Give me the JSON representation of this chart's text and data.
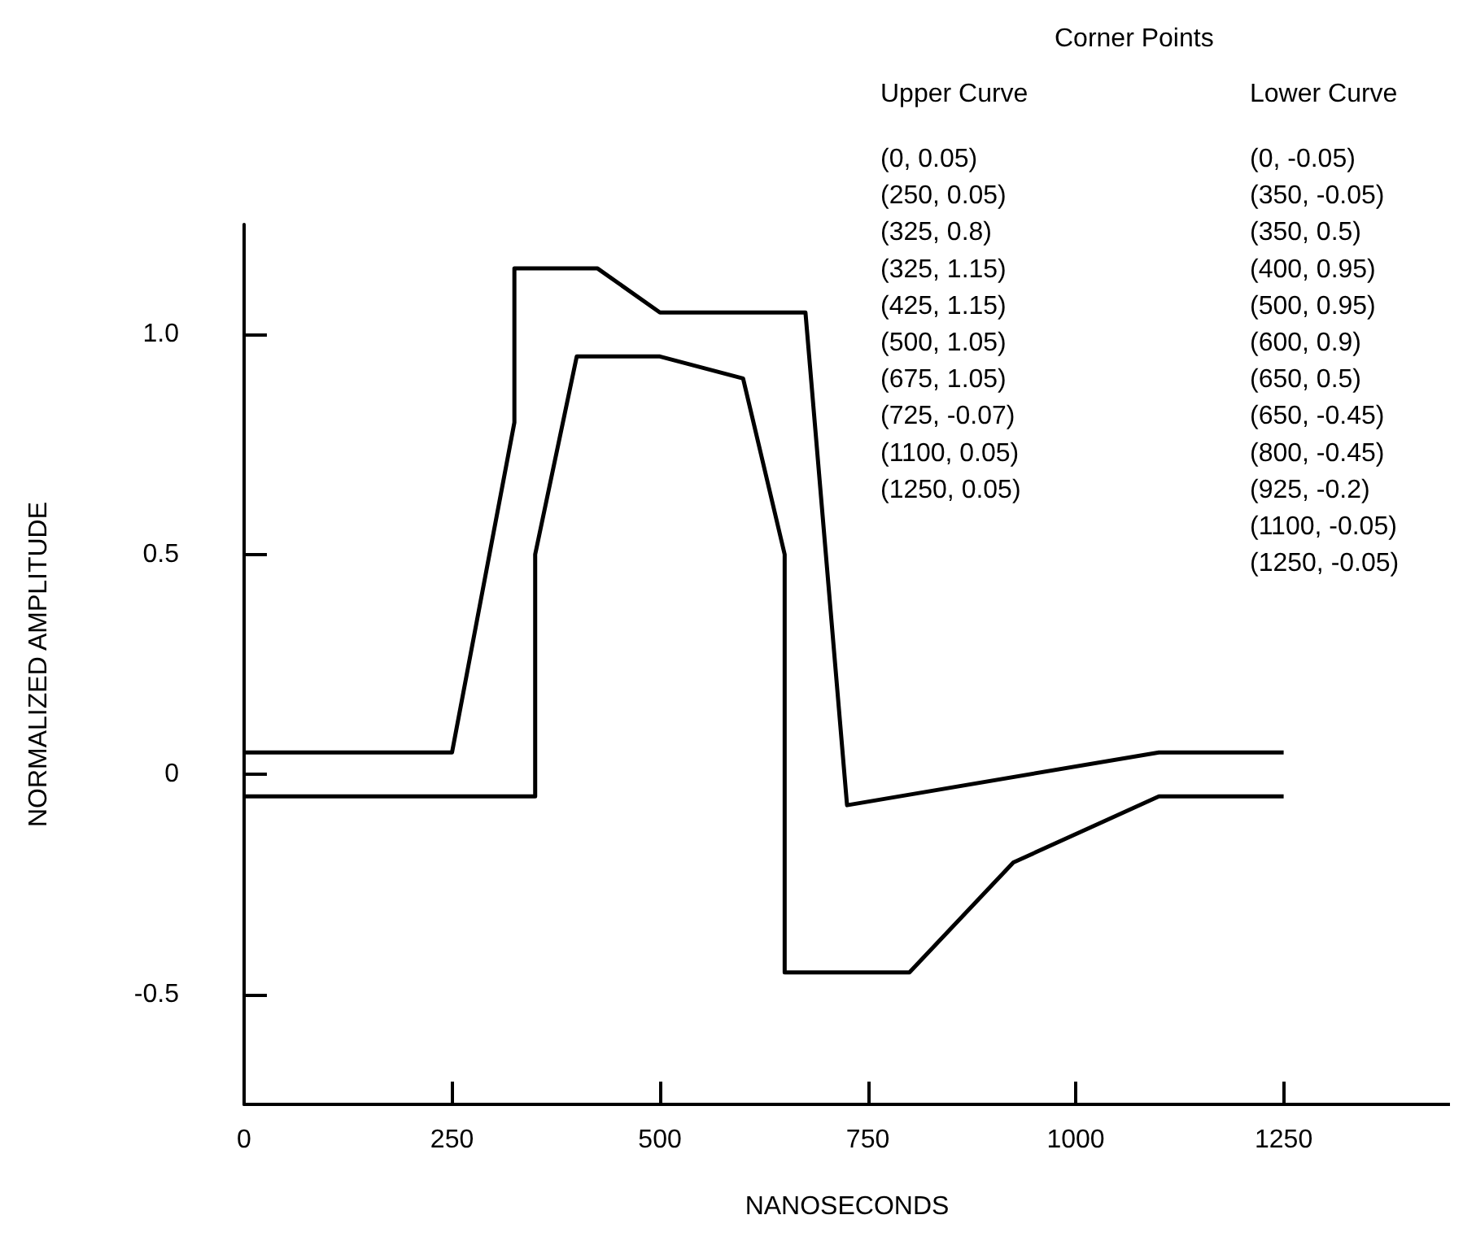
{
  "chart_data": {
    "type": "line",
    "legend_title": "Corner Points",
    "xlabel": "NANOSECONDS",
    "ylabel": "NORMALIZED AMPLITUDE",
    "series": [
      {
        "color": "#000000",
        "x": [
          0,
          250,
          325,
          325,
          425,
          500,
          675,
          725,
          1100,
          1250
        ],
        "values": [
          0.05,
          0.05,
          0.8,
          1.15,
          1.15,
          1.05,
          1.05,
          -0.07,
          0.05,
          0.05
        ]
      },
      {
        "color": "#000000",
        "x": [
          0,
          350,
          350,
          400,
          500,
          600,
          650,
          650,
          800,
          925,
          1100,
          1250
        ],
        "values": [
          -0.05,
          -0.05,
          0.5,
          0.95,
          0.95,
          0.9,
          0.5,
          -0.45,
          -0.45,
          -0.2,
          -0.05,
          -0.05
        ]
      }
    ],
    "annotations": [
      "Upper Curve",
      "(0, 0.05)",
      "(250, 0.05)",
      "(325, 0.8)",
      "(325, 1.15)",
      "(425, 1.15)",
      "(500, 1.05)",
      "(675, 1.05)",
      "(725, -0.07)",
      "(1100, 0.05)",
      "(1250, 0.05)",
      "Lower Curve",
      "(0, -0.05)",
      "(350, -0.05)",
      "(350, 0.5)",
      "(400, 0.95)",
      "(500, 0.95)",
      "(600, 0.9)",
      "(650, 0.5)",
      "(650, -0.45)",
      "(800, -0.45)",
      "(925, -0.2)",
      "(1100, -0.05)",
      "(1250, -0.05)"
    ],
    "xlim": [
      0,
      1450
    ],
    "xticks": [
      0,
      250,
      500,
      750,
      1000,
      1250
    ],
    "ylim": [
      -0.75,
      1.25
    ],
    "yticks": [
      -0.5,
      0,
      0.5,
      {
        "value": 1,
        "label": "1.0"
      }
    ],
    "marker": "none",
    "line_style": "solid"
  }
}
